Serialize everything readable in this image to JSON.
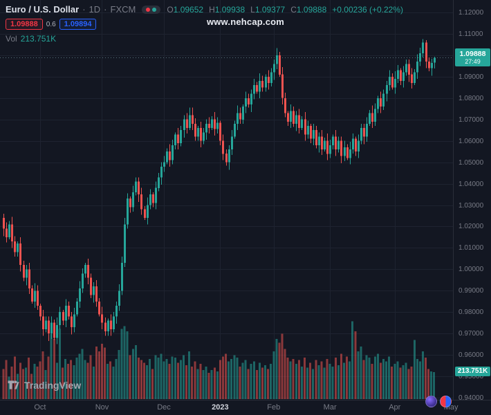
{
  "colors": {
    "bg": "#131722",
    "text": "#d1d4dc",
    "muted": "#787b86",
    "up": "#26a69a",
    "down": "#ef5350",
    "sell": "#f23645",
    "buy": "#2962ff",
    "grid": "#1e2330",
    "price_line": "#56707a",
    "vol_up": "rgba(38,166,154,0.55)",
    "vol_down": "rgba(239,83,80,0.55)"
  },
  "header": {
    "symbol": "Euro / U.S. Dollar",
    "dot": "·",
    "interval": "1D",
    "exchange": "FXCM",
    "ohlc": {
      "o_label": "O",
      "o": "1.09652",
      "h_label": "H",
      "h": "1.09938",
      "l_label": "L",
      "l": "1.09377",
      "c_label": "C",
      "c": "1.09888"
    },
    "change": "+0.00236 (+0.22%)",
    "sell": "1.09888",
    "spread": "0.6",
    "buy": "1.09894",
    "vol_label": "Vol",
    "vol_value": "213.751K"
  },
  "watermark": {
    "text": "www.nehcap.com"
  },
  "price_axis": {
    "labels": [
      "1.12000",
      "1.11000",
      "1.10000",
      "1.09000",
      "1.08000",
      "1.07000",
      "1.06000",
      "1.05000",
      "1.04000",
      "1.03000",
      "1.02000",
      "1.01000",
      "1.00000",
      "0.99000",
      "0.98000",
      "0.97000",
      "0.96000",
      "0.95000",
      "0.94000"
    ],
    "price_badge": {
      "price": "1.09888",
      "countdown": "27:49"
    },
    "volume_badge": "213.751K"
  },
  "footer": {
    "logo_text": "TradingView"
  },
  "chart_data": {
    "type": "candlestick",
    "symbol": "EUR/USD",
    "interval": "1D",
    "note": "candles are [open, high, low, close, volume_k]; values estimated from pixels except last candle which matches the OHLC readout",
    "price_range": {
      "min": 0.94,
      "max": 1.12
    },
    "grid_step": 0.01,
    "volume_axis_max_k": 650,
    "last": {
      "open": 1.09652,
      "high": 1.09938,
      "low": 1.09377,
      "close": 1.09888,
      "change": "+0.00236",
      "change_pct": "+0.22%",
      "volume": "213.751K",
      "countdown": "27:49"
    },
    "time_labels": [
      {
        "text": "Oct",
        "i": 13
      },
      {
        "text": "Nov",
        "i": 35
      },
      {
        "text": "Dec",
        "i": 57
      },
      {
        "text": "2023",
        "i": 77,
        "major": true
      },
      {
        "text": "Feb",
        "i": 96
      },
      {
        "text": "Mar",
        "i": 116
      },
      {
        "text": "Apr",
        "i": 139
      },
      {
        "text": "May",
        "i": 159
      }
    ],
    "candles": [
      [
        1.024,
        1.026,
        1.0155,
        1.019,
        240
      ],
      [
        1.019,
        1.022,
        1.0125,
        1.015,
        310
      ],
      [
        1.015,
        1.0225,
        1.014,
        1.021,
        180
      ],
      [
        1.021,
        1.0245,
        1.01,
        1.013,
        260
      ],
      [
        1.013,
        1.0155,
        1.006,
        1.008,
        340
      ],
      [
        1.008,
        1.013,
        1.006,
        1.012,
        200
      ],
      [
        1.012,
        1.015,
        0.999,
        1.002,
        290
      ],
      [
        1.002,
        1.004,
        0.9945,
        0.996,
        240
      ],
      [
        0.996,
        1.002,
        0.9925,
        1.0,
        250
      ],
      [
        1.0,
        1.003,
        0.9885,
        0.991,
        330
      ],
      [
        0.991,
        0.9925,
        0.984,
        0.985,
        200
      ],
      [
        0.985,
        0.9935,
        0.982,
        0.99,
        280
      ],
      [
        0.99,
        0.9925,
        0.981,
        0.983,
        260
      ],
      [
        0.983,
        0.984,
        0.976,
        0.978,
        300
      ],
      [
        0.978,
        0.981,
        0.969,
        0.972,
        380
      ],
      [
        0.972,
        0.978,
        0.9705,
        0.976,
        230
      ],
      [
        0.976,
        0.978,
        0.9665,
        0.97,
        340
      ],
      [
        0.97,
        0.978,
        0.9675,
        0.975,
        520
      ],
      [
        0.975,
        0.9765,
        0.967,
        0.968,
        480
      ],
      [
        0.968,
        0.9775,
        0.965,
        0.974,
        290
      ],
      [
        0.974,
        0.9825,
        0.972,
        0.98,
        560
      ],
      [
        0.98,
        0.981,
        0.974,
        0.976,
        250
      ],
      [
        0.976,
        0.986,
        0.973,
        0.983,
        320
      ],
      [
        0.983,
        0.985,
        0.9765,
        0.978,
        280
      ],
      [
        0.978,
        0.98,
        0.9695,
        0.973,
        310
      ],
      [
        0.973,
        0.982,
        0.9705,
        0.979,
        270
      ],
      [
        0.979,
        0.9865,
        0.978,
        0.985,
        330
      ],
      [
        0.985,
        0.9945,
        0.982,
        0.991,
        360
      ],
      [
        0.991,
        1.0005,
        0.989,
        0.998,
        400
      ],
      [
        0.998,
        1.003,
        0.996,
        1.002,
        310
      ],
      [
        1.002,
        1.005,
        0.993,
        0.996,
        290
      ],
      [
        0.996,
        0.998,
        0.9865,
        0.988,
        350
      ],
      [
        0.988,
        0.994,
        0.9845,
        0.992,
        260
      ],
      [
        0.992,
        0.995,
        0.9825,
        0.985,
        420
      ],
      [
        0.985,
        0.9865,
        0.978,
        0.979,
        380
      ],
      [
        0.979,
        0.9825,
        0.972,
        0.975,
        440
      ],
      [
        0.975,
        0.9775,
        0.969,
        0.971,
        410
      ],
      [
        0.971,
        0.977,
        0.969,
        0.976,
        280
      ],
      [
        0.976,
        0.979,
        0.969,
        0.972,
        300
      ],
      [
        0.972,
        0.98,
        0.9705,
        0.978,
        260
      ],
      [
        0.978,
        0.985,
        0.9745,
        0.983,
        320
      ],
      [
        0.983,
        0.993,
        0.9805,
        0.99,
        390
      ],
      [
        0.99,
        1.006,
        0.988,
        1.003,
        560
      ],
      [
        1.003,
        1.024,
        1.001,
        1.021,
        580
      ],
      [
        1.021,
        1.0355,
        1.019,
        1.033,
        540
      ],
      [
        1.033,
        1.034,
        1.0265,
        1.029,
        350
      ],
      [
        1.029,
        1.039,
        1.027,
        1.036,
        400
      ],
      [
        1.036,
        1.043,
        1.0345,
        1.041,
        430
      ],
      [
        1.041,
        1.043,
        1.0315,
        1.035,
        330
      ],
      [
        1.035,
        1.038,
        1.0255,
        1.028,
        310
      ],
      [
        1.028,
        1.0295,
        1.023,
        1.024,
        290
      ],
      [
        1.024,
        1.0335,
        1.021,
        1.03,
        270
      ],
      [
        1.03,
        1.0375,
        1.028,
        1.035,
        320
      ],
      [
        1.035,
        1.036,
        1.029,
        1.031,
        240
      ],
      [
        1.031,
        1.041,
        1.028,
        1.038,
        350
      ],
      [
        1.038,
        1.045,
        1.0365,
        1.043,
        330
      ],
      [
        1.043,
        1.05,
        1.0395,
        1.048,
        360
      ],
      [
        1.048,
        1.053,
        1.0455,
        1.05,
        300
      ],
      [
        1.05,
        1.0565,
        1.049,
        1.055,
        320
      ],
      [
        1.055,
        1.0585,
        1.048,
        1.051,
        280
      ],
      [
        1.051,
        1.0605,
        1.049,
        1.058,
        340
      ],
      [
        1.058,
        1.064,
        1.056,
        1.063,
        330
      ],
      [
        1.063,
        1.066,
        1.056,
        1.059,
        290
      ],
      [
        1.059,
        1.067,
        1.0575,
        1.065,
        310
      ],
      [
        1.065,
        1.072,
        1.0615,
        1.07,
        350
      ],
      [
        1.07,
        1.073,
        1.0635,
        1.066,
        270
      ],
      [
        1.066,
        1.0755,
        1.065,
        1.072,
        380
      ],
      [
        1.072,
        1.0755,
        1.065,
        1.068,
        260
      ],
      [
        1.068,
        1.0705,
        1.06,
        1.062,
        300
      ],
      [
        1.062,
        1.067,
        1.06,
        1.066,
        240
      ],
      [
        1.066,
        1.069,
        1.057,
        1.06,
        280
      ],
      [
        1.06,
        1.066,
        1.0585,
        1.064,
        230
      ],
      [
        1.064,
        1.07,
        1.0605,
        1.068,
        260
      ],
      [
        1.068,
        1.071,
        1.0635,
        1.066,
        210
      ],
      [
        1.066,
        1.0715,
        1.065,
        1.07,
        230
      ],
      [
        1.07,
        1.0735,
        1.0625,
        1.0655,
        250
      ],
      [
        1.0655,
        1.071,
        1.0635,
        1.0685,
        220
      ],
      [
        1.0685,
        1.0695,
        1.058,
        1.06,
        310
      ],
      [
        1.06,
        1.063,
        1.051,
        1.054,
        340
      ],
      [
        1.054,
        1.056,
        1.0485,
        1.05,
        360
      ],
      [
        1.05,
        1.058,
        1.0465,
        1.056,
        300
      ],
      [
        1.056,
        1.065,
        1.0535,
        1.062,
        320
      ],
      [
        1.062,
        1.0695,
        1.061,
        1.068,
        350
      ],
      [
        1.068,
        1.0765,
        1.065,
        1.073,
        330
      ],
      [
        1.073,
        1.0755,
        1.068,
        1.07,
        260
      ],
      [
        1.07,
        1.077,
        1.068,
        1.076,
        290
      ],
      [
        1.076,
        1.083,
        1.073,
        1.08,
        310
      ],
      [
        1.08,
        1.082,
        1.0755,
        1.077,
        240
      ],
      [
        1.077,
        1.084,
        1.0735,
        1.082,
        280
      ],
      [
        1.082,
        1.089,
        1.0795,
        1.086,
        300
      ],
      [
        1.086,
        1.0875,
        1.082,
        1.083,
        230
      ],
      [
        1.083,
        1.0915,
        1.08,
        1.088,
        290
      ],
      [
        1.088,
        1.0905,
        1.083,
        1.085,
        250
      ],
      [
        1.085,
        1.091,
        1.083,
        1.09,
        270
      ],
      [
        1.09,
        1.093,
        1.084,
        1.087,
        240
      ],
      [
        1.087,
        1.094,
        1.0855,
        1.092,
        280
      ],
      [
        1.092,
        1.098,
        1.0885,
        1.096,
        380
      ],
      [
        1.096,
        1.1033,
        1.0935,
        1.1,
        480
      ],
      [
        1.1,
        1.1015,
        1.09,
        1.091,
        450
      ],
      [
        1.091,
        1.0945,
        1.077,
        1.08,
        520
      ],
      [
        1.08,
        1.0825,
        1.071,
        1.073,
        400
      ],
      [
        1.073,
        1.074,
        1.067,
        1.069,
        330
      ],
      [
        1.069,
        1.077,
        1.066,
        1.074,
        300
      ],
      [
        1.074,
        1.076,
        1.0665,
        1.068,
        320
      ],
      [
        1.068,
        1.074,
        1.0645,
        1.072,
        280
      ],
      [
        1.072,
        1.075,
        1.0635,
        1.066,
        310
      ],
      [
        1.066,
        1.0715,
        1.065,
        1.07,
        260
      ],
      [
        1.07,
        1.0735,
        1.06,
        1.063,
        330
      ],
      [
        1.063,
        1.0695,
        1.061,
        1.067,
        250
      ],
      [
        1.067,
        1.068,
        1.059,
        1.061,
        290
      ],
      [
        1.061,
        1.068,
        1.058,
        1.065,
        240
      ],
      [
        1.065,
        1.067,
        1.0565,
        1.058,
        310
      ],
      [
        1.058,
        1.064,
        1.0545,
        1.062,
        270
      ],
      [
        1.062,
        1.065,
        1.0535,
        1.056,
        300
      ],
      [
        1.056,
        1.0615,
        1.055,
        1.06,
        250
      ],
      [
        1.06,
        1.0635,
        1.051,
        1.054,
        320
      ],
      [
        1.054,
        1.0605,
        1.052,
        1.058,
        280
      ],
      [
        1.058,
        1.063,
        1.056,
        1.062,
        260
      ],
      [
        1.062,
        1.065,
        1.053,
        1.056,
        330
      ],
      [
        1.056,
        1.062,
        1.0545,
        1.06,
        270
      ],
      [
        1.06,
        1.062,
        1.0495,
        1.053,
        360
      ],
      [
        1.053,
        1.06,
        1.0505,
        1.057,
        290
      ],
      [
        1.057,
        1.0585,
        1.051,
        1.052,
        340
      ],
      [
        1.052,
        1.0595,
        1.049,
        1.056,
        300
      ],
      [
        1.056,
        1.0635,
        1.054,
        1.061,
        620
      ],
      [
        1.061,
        1.062,
        1.053,
        1.055,
        540
      ],
      [
        1.055,
        1.063,
        1.052,
        1.06,
        380
      ],
      [
        1.06,
        1.068,
        1.0585,
        1.066,
        420
      ],
      [
        1.066,
        1.068,
        1.0585,
        1.062,
        310
      ],
      [
        1.062,
        1.071,
        1.0595,
        1.068,
        350
      ],
      [
        1.068,
        1.0745,
        1.067,
        1.073,
        330
      ],
      [
        1.073,
        1.0765,
        1.066,
        1.069,
        280
      ],
      [
        1.069,
        1.0775,
        1.067,
        1.075,
        340
      ],
      [
        1.075,
        1.081,
        1.073,
        1.08,
        360
      ],
      [
        1.08,
        1.083,
        1.073,
        1.076,
        290
      ],
      [
        1.076,
        1.084,
        1.0745,
        1.082,
        320
      ],
      [
        1.082,
        1.088,
        1.0785,
        1.086,
        300
      ],
      [
        1.086,
        1.093,
        1.0835,
        1.09,
        340
      ],
      [
        1.09,
        1.0915,
        1.084,
        1.085,
        260
      ],
      [
        1.085,
        1.0925,
        1.082,
        1.089,
        280
      ],
      [
        1.089,
        1.0955,
        1.087,
        1.093,
        300
      ],
      [
        1.093,
        1.094,
        1.086,
        1.088,
        250
      ],
      [
        1.088,
        1.095,
        1.085,
        1.092,
        270
      ],
      [
        1.092,
        1.098,
        1.0905,
        1.096,
        290
      ],
      [
        1.096,
        1.098,
        1.0875,
        1.091,
        240
      ],
      [
        1.091,
        1.094,
        1.0845,
        1.087,
        260
      ],
      [
        1.087,
        1.0935,
        1.086,
        1.092,
        470
      ],
      [
        1.092,
        1.1005,
        1.089,
        1.097,
        320
      ],
      [
        1.097,
        1.1035,
        1.095,
        1.101,
        300
      ],
      [
        1.101,
        1.1075,
        1.099,
        1.106,
        380
      ],
      [
        1.106,
        1.107,
        1.094,
        1.097,
        330
      ],
      [
        1.097,
        1.099,
        1.0925,
        1.094,
        240
      ],
      [
        1.094,
        1.0984,
        1.0905,
        1.0964,
        220
      ],
      [
        1.09652,
        1.09938,
        1.09377,
        1.09888,
        213.751
      ]
    ]
  }
}
